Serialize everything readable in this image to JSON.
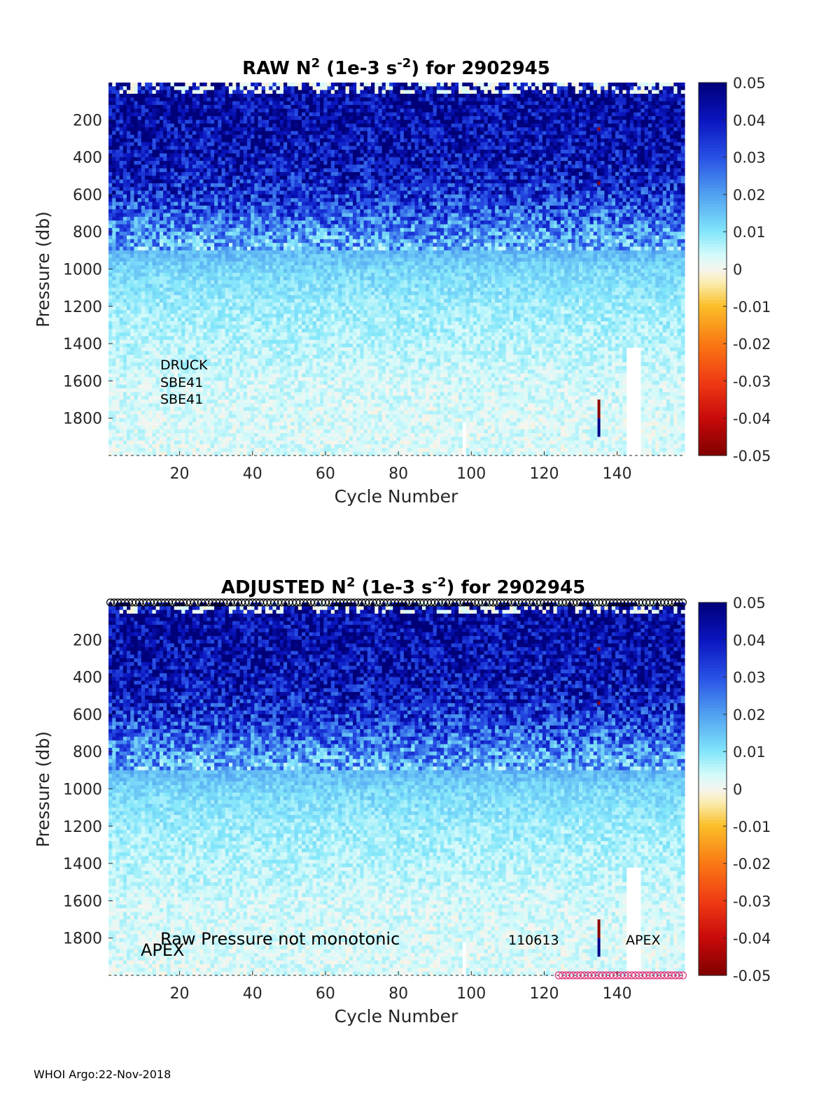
{
  "footer": "WHOI Argo:22-Nov-2018",
  "chart_data": [
    {
      "type": "heatmap",
      "title": {
        "prefix": "RAW N",
        "sup1": "2",
        "mid": " (1e-3 s",
        "sup2": "-2",
        "suffix": ") for 2902945"
      },
      "xlabel": "Cycle Number",
      "ylabel": "Pressure (db)",
      "xlim": [
        1,
        158
      ],
      "ylim": [
        2000,
        0
      ],
      "xticks": [
        20,
        40,
        60,
        80,
        100,
        120,
        140
      ],
      "yticks": [
        200,
        400,
        600,
        800,
        1000,
        1200,
        1400,
        1600,
        1800
      ],
      "colorbar": {
        "min": -0.05,
        "max": 0.05,
        "ticks": [
          "0.05",
          "0.04",
          "0.03",
          "0.02",
          "0.01",
          "0",
          "-0.01",
          "-0.02",
          "-0.03",
          "-0.04",
          "-0.05"
        ],
        "colormap": "jet-like diverging"
      },
      "annotations": [
        "DRUCK",
        "SBE41",
        "SBE41"
      ],
      "description_profile": [
        {
          "pressure": 50,
          "n2": 0.045
        },
        {
          "pressure": 200,
          "n2": 0.044
        },
        {
          "pressure": 400,
          "n2": 0.042
        },
        {
          "pressure": 600,
          "n2": 0.035
        },
        {
          "pressure": 800,
          "n2": 0.022
        },
        {
          "pressure": 1000,
          "n2": 0.012
        },
        {
          "pressure": 1200,
          "n2": 0.008
        },
        {
          "pressure": 1400,
          "n2": 0.006
        },
        {
          "pressure": 1600,
          "n2": 0.004
        },
        {
          "pressure": 1800,
          "n2": 0.003
        },
        {
          "pressure": 1980,
          "n2": 0.003
        }
      ]
    },
    {
      "type": "heatmap",
      "title": {
        "prefix": "ADJUSTED N",
        "sup1": "2",
        "mid": " (1e-3 s",
        "sup2": "-2",
        "suffix": ") for 2902945"
      },
      "xlabel": "Cycle Number",
      "ylabel": "Pressure (db)",
      "xlim": [
        1,
        158
      ],
      "ylim": [
        2000,
        0
      ],
      "xticks": [
        20,
        40,
        60,
        80,
        100,
        120,
        140
      ],
      "yticks": [
        200,
        400,
        600,
        800,
        1000,
        1200,
        1400,
        1600,
        1800
      ],
      "colorbar": {
        "min": -0.05,
        "max": 0.05,
        "ticks": [
          "0.05",
          "0.04",
          "0.03",
          "0.02",
          "0.01",
          "0",
          "-0.01",
          "-0.02",
          "-0.03",
          "-0.04",
          "-0.05"
        ],
        "colormap": "jet-like diverging"
      },
      "annotations": [
        "Raw Pressure not monotonic",
        "APEX",
        "110613",
        "APEX"
      ],
      "top_markers": {
        "from_cycle": 1,
        "to_cycle": 158,
        "color": "#000000"
      },
      "bottom_markers": {
        "from_cycle": 124,
        "to_cycle": 158,
        "color": "#e0307a"
      }
    }
  ]
}
